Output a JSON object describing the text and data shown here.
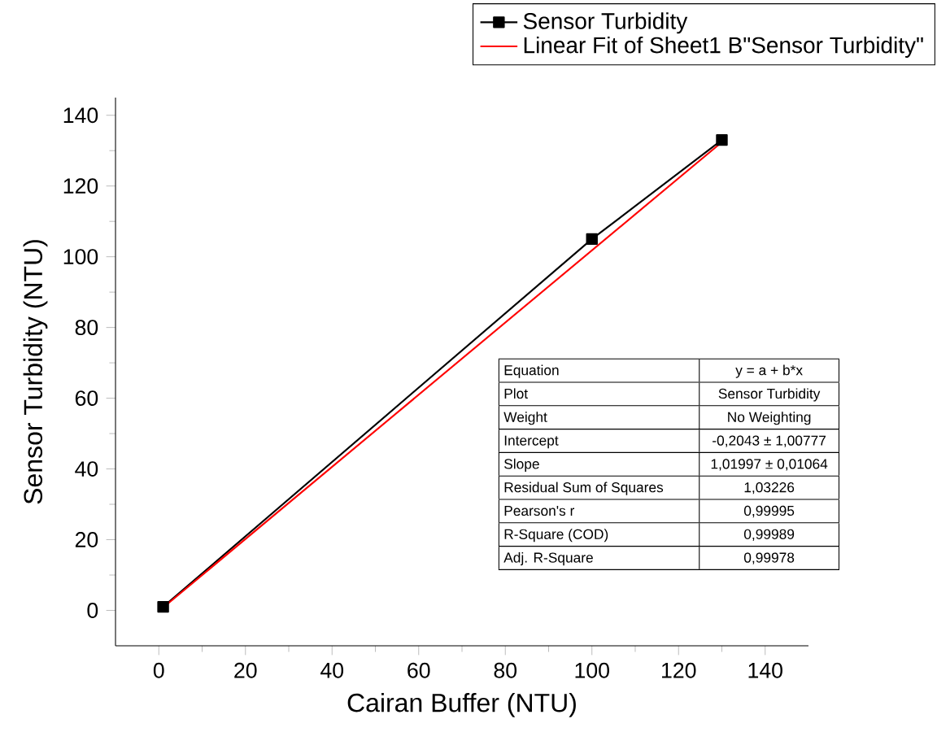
{
  "chart_data": {
    "type": "line",
    "xlabel": "Cairan Buffer (NTU)",
    "ylabel": "Sensor Turbidity (NTU)",
    "x": [
      1,
      100,
      130
    ],
    "series": [
      {
        "name": "Sensor Turbidity",
        "color": "#000000",
        "values": [
          1,
          105,
          133
        ],
        "marker": "square"
      },
      {
        "name": "Linear Fit of Sheet1 B\"Sensor Turbidity\"",
        "color": "#ff0000",
        "x": [
          1,
          130
        ],
        "values": [
          0.8,
          132.4
        ],
        "marker": "none"
      }
    ],
    "xlim": [
      -10,
      150
    ],
    "ylim": [
      -10,
      145
    ],
    "xticks": [
      0,
      20,
      40,
      60,
      80,
      100,
      120,
      140
    ],
    "yticks": [
      0,
      20,
      40,
      60,
      80,
      100,
      120,
      140
    ],
    "legend": "top right",
    "line_style": "solid",
    "annotations": [
      "Equation",
      "y = a + b*x",
      "Plot",
      "Sensor Turbidity",
      "Weight",
      "No Weighting",
      "Intercept",
      "-0,2043 ± 1,00777",
      "Slope",
      "1,01997 ± 0,01064",
      "Residual Sum of Squares",
      "1,03226",
      "Pearson's r",
      "0,99995",
      "R-Square (COD)",
      "0,99989",
      "Adj. R-Square",
      "0,99978"
    ]
  }
}
